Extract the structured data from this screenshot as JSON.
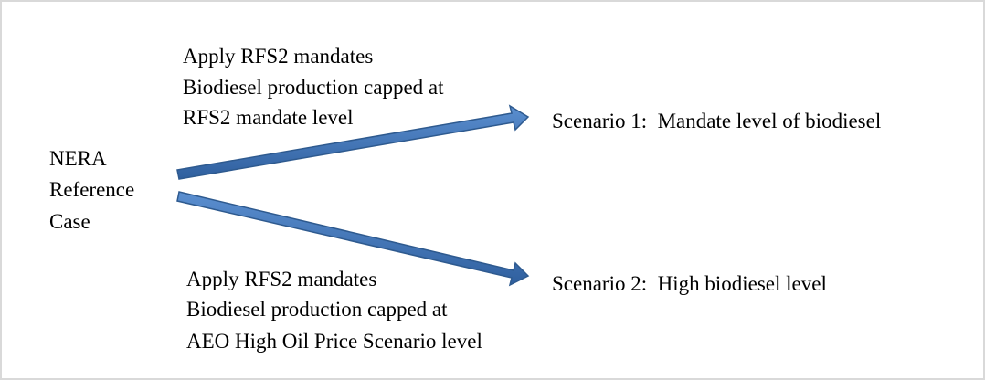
{
  "source": {
    "label_lines": [
      "NERA",
      "Reference",
      "Case"
    ]
  },
  "branches": [
    {
      "condition_lines": [
        "Apply RFS2 mandates",
        "Biodiesel production capped at",
        "RFS2 mandate level"
      ],
      "result": "Scenario 1:  Mandate level of biodiesel"
    },
    {
      "condition_lines": [
        "Apply RFS2 mandates",
        "Biodiesel production capped at",
        "AEO High Oil Price Scenario level"
      ],
      "result": "Scenario 2:  High biodiesel level"
    }
  ]
}
